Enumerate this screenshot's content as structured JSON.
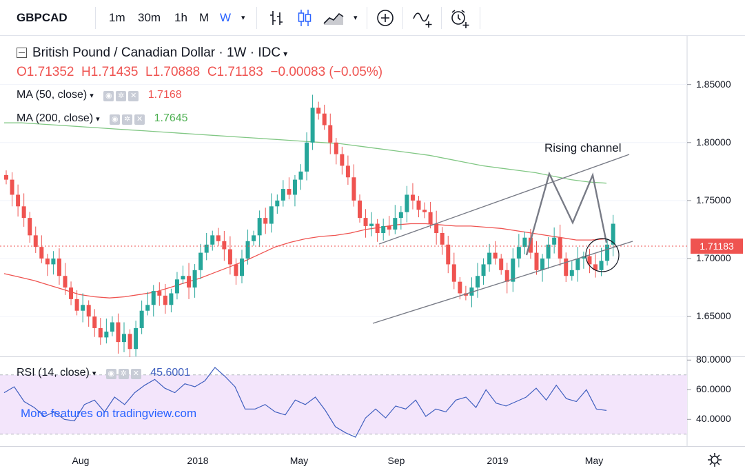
{
  "toolbar": {
    "symbol": "GBPCAD",
    "intervals": [
      "1m",
      "30m",
      "1h",
      "M",
      "W"
    ],
    "active_interval": "W",
    "icons": [
      "bar-style-icon",
      "candle-style-icon",
      "indicators-icon",
      "compare-icon",
      "drawing-icon",
      "alert-icon"
    ]
  },
  "legend": {
    "title": "British Pound / Canadian Dollar · 1W · IDC",
    "o": "O1.71352",
    "h": "H1.71435",
    "l": "L1.70888",
    "c": "C1.71183",
    "change": "−0.00083 (−0.05%)",
    "ma50_label": "MA (50, close)",
    "ma50_value": "1.7168",
    "ma200_label": "MA (200, close)",
    "ma200_value": "1.7645",
    "rsi_label": "RSI (14, close)",
    "rsi_value": "45.6001"
  },
  "annotation": "Rising channel",
  "watermark": "More features on tradingview.com",
  "current_price_tag": "1.71183",
  "colors": {
    "up": "#26a69a",
    "down": "#ef5350",
    "ma50": "#ef5350",
    "ma200": "#81c784",
    "rsi": "#3f5fbf",
    "rsi_band": "#f3e5fb",
    "accent": "#2962ff"
  },
  "chart_data": [
    {
      "type": "candlestick",
      "title": "British Pound / Canadian Dollar · 1W · IDC",
      "x_ticks": [
        "Aug",
        "2018",
        "May",
        "Sep",
        "2019",
        "May"
      ],
      "y_ticks": [
        "1.85000",
        "1.80000",
        "1.75000",
        "1.70000",
        "1.65000"
      ],
      "ylim": [
        1.615,
        1.892
      ],
      "series": [
        {
          "name": "MA (50, close)",
          "values": [
            1.687,
            1.684,
            1.681,
            1.677,
            1.673,
            1.669,
            1.667,
            1.666,
            1.667,
            1.669,
            1.671,
            1.675,
            1.679,
            1.683,
            1.688,
            1.693,
            1.698,
            1.704,
            1.71,
            1.714,
            1.717,
            1.719,
            1.72,
            1.722,
            1.725,
            1.727,
            1.729,
            1.73,
            1.73,
            1.729,
            1.728,
            1.728,
            1.727,
            1.726,
            1.724,
            1.722,
            1.72,
            1.718,
            1.716,
            1.716,
            1.717
          ]
        },
        {
          "name": "MA (200, close)",
          "values": [
            1.817,
            1.817,
            1.816,
            1.815,
            1.814,
            1.813,
            1.812,
            1.811,
            1.81,
            1.809,
            1.808,
            1.807,
            1.806,
            1.805,
            1.804,
            1.803,
            1.802,
            1.801,
            1.8,
            1.799,
            1.797,
            1.795,
            1.793,
            1.791,
            1.789,
            1.786,
            1.783,
            1.78,
            1.778,
            1.776,
            1.774,
            1.771,
            1.768,
            1.766,
            1.765
          ]
        }
      ],
      "annotations": [
        "Rising channel"
      ]
    },
    {
      "type": "line",
      "title": "RSI (14, close)",
      "y_ticks": [
        "80.0000",
        "60.0000",
        "40.0000"
      ],
      "ylim": [
        22,
        82
      ],
      "band": [
        30,
        70
      ],
      "series": [
        {
          "name": "RSI (14, close)",
          "values": [
            58,
            62,
            52,
            48,
            42,
            45,
            40,
            39,
            50,
            53,
            45,
            55,
            50,
            58,
            63,
            67,
            61,
            58,
            64,
            62,
            66,
            75,
            69,
            62,
            47,
            47,
            50,
            45,
            43,
            53,
            50,
            55,
            46,
            35,
            31,
            28,
            41,
            47,
            41,
            49,
            47,
            53,
            42,
            47,
            45,
            53,
            55,
            48,
            60,
            51,
            49,
            52,
            55,
            61,
            53,
            63,
            54,
            52,
            60,
            47,
            46
          ]
        }
      ]
    }
  ]
}
